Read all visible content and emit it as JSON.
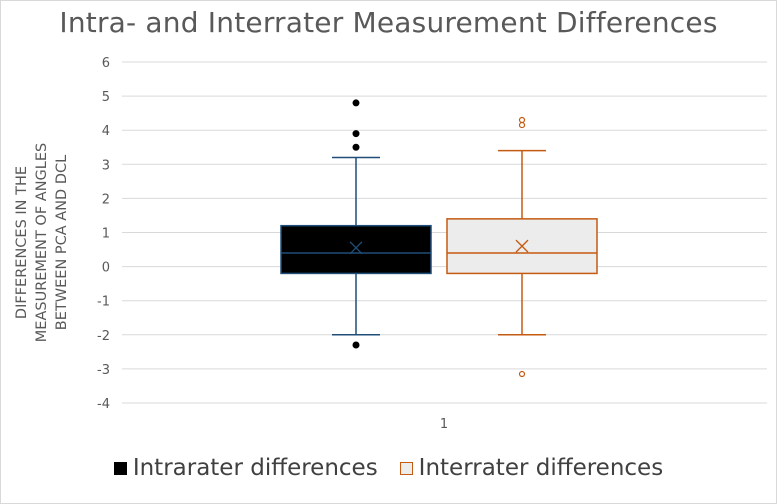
{
  "chart_data": {
    "type": "box",
    "title": "Intra- and Interrater Measurement Differences",
    "ylabel_lines": [
      "DIFFERENCES IN THE",
      "MEASUREMENT OF ANGLES",
      "BETWEEN PCA AND DCL"
    ],
    "xlabel": "",
    "categories": [
      "1"
    ],
    "ylim": [
      -4,
      6
    ],
    "yticks": [
      -4,
      -3,
      -2,
      -1,
      0,
      1,
      2,
      3,
      4,
      5,
      6
    ],
    "grid": true,
    "legend_position": "bottom",
    "series": [
      {
        "name": "Intrarater differences",
        "fill": "#000000",
        "stroke": "#1f4e79",
        "legend_stroke": "#000000",
        "marker": "filled",
        "whisker_low": -2.0,
        "q1": -0.2,
        "median": 0.4,
        "q3": 1.2,
        "whisker_high": 3.2,
        "mean": 0.55,
        "outliers": [
          4.8,
          3.9,
          3.5,
          -2.3
        ]
      },
      {
        "name": "Interrater differences",
        "fill": "#ececec",
        "stroke": "#c55a11",
        "legend_stroke": "#c55a11",
        "marker": "hollow",
        "whisker_low": -2.0,
        "q1": -0.2,
        "median": 0.4,
        "q3": 1.4,
        "whisker_high": 3.4,
        "mean": 0.6,
        "outliers": [
          4.3,
          4.15,
          -3.15
        ]
      }
    ]
  }
}
